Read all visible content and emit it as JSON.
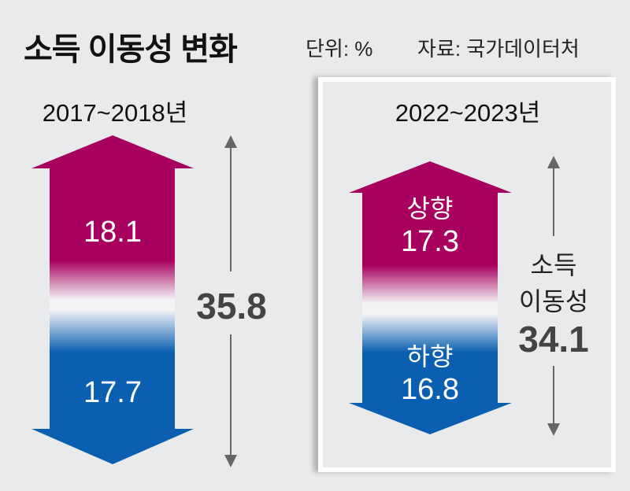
{
  "header": {
    "title": "소득 이동성 변화",
    "unit": "단위: %",
    "source": "자료: 국가데이터처"
  },
  "chart_data": {
    "type": "bar",
    "title": "소득 이동성 변화",
    "unit": "%",
    "categories": [
      "2017~2018년",
      "2022~2023년"
    ],
    "series": [
      {
        "name": "상향",
        "values": [
          18.1,
          17.3
        ]
      },
      {
        "name": "하향",
        "values": [
          17.7,
          16.8
        ]
      }
    ],
    "totals_label": "소득 이동성",
    "totals": [
      35.8,
      34.1
    ],
    "colors": {
      "upward": "#a8005f",
      "downward": "#0a5fb0",
      "total_text": "#444444"
    }
  },
  "labels": {
    "up": "상향",
    "down": "하향",
    "side_line1": "소득",
    "side_line2": "이동성"
  },
  "display": {
    "p1_up": "18.1",
    "p1_down": "17.7",
    "p1_total": "35.8",
    "p2_up": "17.3",
    "p2_down": "16.8",
    "p2_total": "34.1"
  }
}
